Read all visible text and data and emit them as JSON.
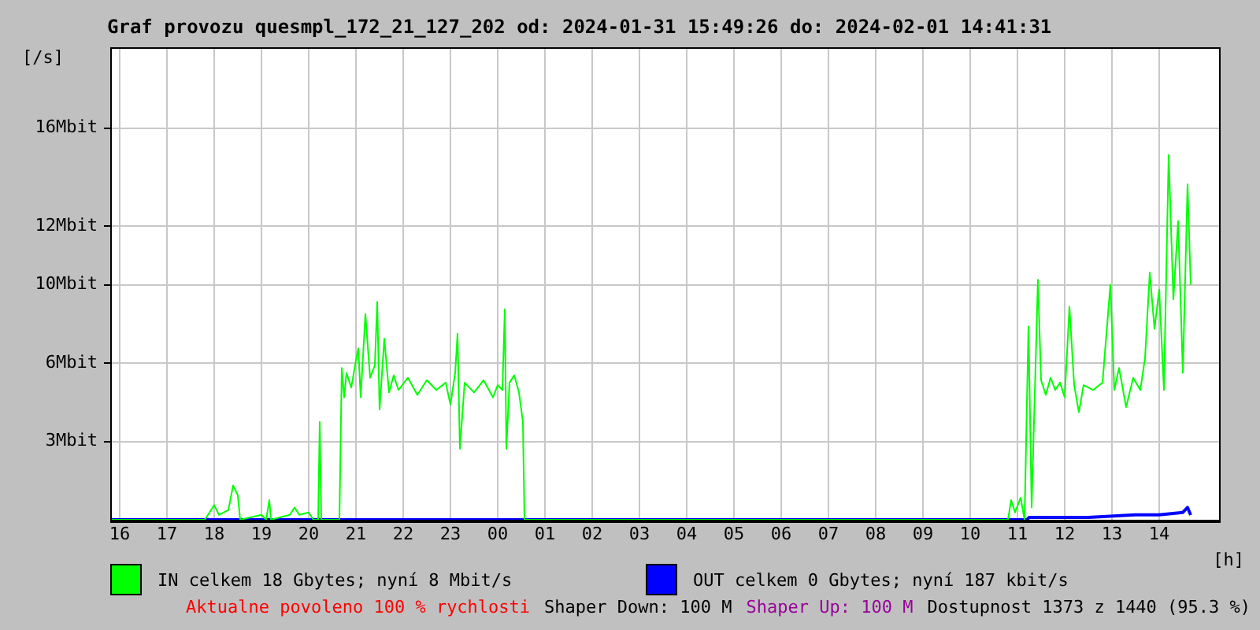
{
  "chart_data": {
    "type": "line",
    "title": "Graf provozu quesmpl_172_21_127_202 od: 2024-01-31 15:49:26 do: 2024-02-01 14:41:31",
    "xlabel": "[h]",
    "ylabel": "[/s]",
    "xlim": [
      "2024-01-31T15:48",
      "2024-02-01T15:18"
    ],
    "xticks": [
      {
        "value": "2024-01-31T16:00",
        "label": "16"
      },
      {
        "value": "2024-01-31T17:00",
        "label": "17"
      },
      {
        "value": "2024-01-31T18:00",
        "label": "18"
      },
      {
        "value": "2024-01-31T19:00",
        "label": "19"
      },
      {
        "value": "2024-01-31T20:00",
        "label": "20"
      },
      {
        "value": "2024-01-31T21:00",
        "label": "21"
      },
      {
        "value": "2024-01-31T22:00",
        "label": "22"
      },
      {
        "value": "2024-01-31T23:00",
        "label": "23"
      },
      {
        "value": "2024-02-01T00:00",
        "label": "00"
      },
      {
        "value": "2024-02-01T01:00",
        "label": "01"
      },
      {
        "value": "2024-02-01T02:00",
        "label": "02"
      },
      {
        "value": "2024-02-01T03:00",
        "label": "03"
      },
      {
        "value": "2024-02-01T04:00",
        "label": "04"
      },
      {
        "value": "2024-02-01T05:00",
        "label": "05"
      },
      {
        "value": "2024-02-01T06:00",
        "label": "06"
      },
      {
        "value": "2024-02-01T07:00",
        "label": "07"
      },
      {
        "value": "2024-02-01T08:00",
        "label": "08"
      },
      {
        "value": "2024-02-01T09:00",
        "label": "09"
      },
      {
        "value": "2024-02-01T10:00",
        "label": "10"
      },
      {
        "value": "2024-02-01T11:00",
        "label": "11"
      },
      {
        "value": "2024-02-01T12:00",
        "label": "12"
      },
      {
        "value": "2024-02-01T13:00",
        "label": "13"
      },
      {
        "value": "2024-02-01T14:00",
        "label": "14"
      }
    ],
    "ylim": [
      0,
      19.3
    ],
    "yticks": [
      {
        "value": 3.2,
        "label": "3Mbit"
      },
      {
        "value": 6.4,
        "label": "6Mbit"
      },
      {
        "value": 9.6,
        "label": "10Mbit"
      },
      {
        "value": 12,
        "label": "12Mbit"
      },
      {
        "value": 16,
        "label": "16Mbit"
      }
    ],
    "grid": true,
    "legend": "bottom",
    "marker": "none",
    "line_style": "solid",
    "series": [
      {
        "name": "IN celkem 18 Gbytes; nyní 8 Mbit/s",
        "color": "#00ff00",
        "x": [
          "2024-01-31T15:48",
          "2024-01-31T17:48",
          "2024-01-31T17:54",
          "2024-01-31T18:00",
          "2024-01-31T18:06",
          "2024-01-31T18:18",
          "2024-01-31T18:24",
          "2024-01-31T18:30",
          "2024-01-31T18:33",
          "2024-01-31T19:00",
          "2024-01-31T19:06",
          "2024-01-31T19:10",
          "2024-01-31T19:12",
          "2024-01-31T19:36",
          "2024-01-31T19:42",
          "2024-01-31T19:48",
          "2024-01-31T20:00",
          "2024-01-31T20:06",
          "2024-01-31T20:12",
          "2024-01-31T20:14",
          "2024-01-31T20:16",
          "2024-01-31T20:39",
          "2024-01-31T20:42",
          "2024-01-31T20:45",
          "2024-01-31T20:48",
          "2024-01-31T20:54",
          "2024-01-31T21:00",
          "2024-01-31T21:03",
          "2024-01-31T21:06",
          "2024-01-31T21:12",
          "2024-01-31T21:18",
          "2024-01-31T21:24",
          "2024-01-31T21:27",
          "2024-01-31T21:30",
          "2024-01-31T21:36",
          "2024-01-31T21:42",
          "2024-01-31T21:48",
          "2024-01-31T21:54",
          "2024-01-31T22:06",
          "2024-01-31T22:18",
          "2024-01-31T22:30",
          "2024-01-31T22:42",
          "2024-01-31T22:54",
          "2024-01-31T23:00",
          "2024-01-31T23:06",
          "2024-01-31T23:09",
          "2024-01-31T23:12",
          "2024-01-31T23:18",
          "2024-01-31T23:30",
          "2024-01-31T23:42",
          "2024-01-31T23:54",
          "2024-02-01T00:00",
          "2024-02-01T00:06",
          "2024-02-01T00:09",
          "2024-02-01T00:11",
          "2024-02-01T00:15",
          "2024-02-01T00:21",
          "2024-02-01T00:27",
          "2024-02-01T00:32",
          "2024-02-01T00:34",
          "2024-02-01T10:48",
          "2024-02-01T10:52",
          "2024-02-01T10:57",
          "2024-02-01T11:04",
          "2024-02-01T11:09",
          "2024-02-01T11:14",
          "2024-02-01T11:18",
          "2024-02-01T11:26",
          "2024-02-01T11:30",
          "2024-02-01T11:36",
          "2024-02-01T11:42",
          "2024-02-01T11:48",
          "2024-02-01T11:54",
          "2024-02-01T12:00",
          "2024-02-01T12:06",
          "2024-02-01T12:12",
          "2024-02-01T12:18",
          "2024-02-01T12:24",
          "2024-02-01T12:36",
          "2024-02-01T12:48",
          "2024-02-01T12:58",
          "2024-02-01T13:03",
          "2024-02-01T13:09",
          "2024-02-01T13:18",
          "2024-02-01T13:27",
          "2024-02-01T13:36",
          "2024-02-01T13:42",
          "2024-02-01T13:48",
          "2024-02-01T13:54",
          "2024-02-01T14:00",
          "2024-02-01T14:06",
          "2024-02-01T14:12",
          "2024-02-01T14:18",
          "2024-02-01T14:24",
          "2024-02-01T14:30",
          "2024-02-01T14:36",
          "2024-02-01T14:40"
        ],
        "values": [
          0,
          0,
          0.3,
          0.6,
          0.2,
          0.4,
          1.4,
          1.0,
          0,
          0.2,
          0,
          0.8,
          0,
          0.2,
          0.5,
          0.2,
          0.3,
          0,
          0,
          4.0,
          0,
          0,
          6.2,
          5.0,
          6.0,
          5.4,
          6.5,
          7.0,
          5.0,
          8.4,
          5.8,
          6.3,
          8.9,
          4.5,
          7.4,
          5.2,
          5.9,
          5.3,
          5.8,
          5.1,
          5.7,
          5.3,
          5.6,
          4.7,
          6.0,
          7.6,
          2.9,
          5.6,
          5.2,
          5.7,
          5.0,
          5.5,
          5.3,
          8.6,
          2.9,
          5.6,
          5.9,
          5.2,
          4.0,
          0,
          0,
          0.8,
          0.3,
          0.9,
          0,
          7.9,
          0.5,
          9.8,
          5.7,
          5.1,
          5.8,
          5.3,
          5.6,
          5.0,
          8.7,
          5.5,
          4.4,
          5.5,
          5.3,
          5.6,
          9.6,
          5.3,
          6.2,
          4.6,
          5.8,
          5.3,
          6.6,
          10.1,
          7.8,
          9.4,
          5.3,
          14.9,
          9.0,
          12.2,
          6.0,
          13.7,
          9.6
        ]
      },
      {
        "name": "OUT celkem 0 Gbytes; nyní 187 kbit/s",
        "color": "#0000ff",
        "x": [
          "2024-01-31T15:48",
          "2024-02-01T11:12",
          "2024-02-01T11:15",
          "2024-02-01T12:30",
          "2024-02-01T13:30",
          "2024-02-01T14:00",
          "2024-02-01T14:30",
          "2024-02-01T14:36",
          "2024-02-01T14:40"
        ],
        "values": [
          0,
          0,
          0.1,
          0.1,
          0.2,
          0.2,
          0.3,
          0.5,
          0.19
        ]
      }
    ],
    "annotations": [
      "Aktualne povoleno 100 % rychlosti",
      "Shaper Down: 100 M",
      "Shaper Up: 100 M",
      "Dostupnost 1373 z 1440 (95.3 %)"
    ]
  }
}
